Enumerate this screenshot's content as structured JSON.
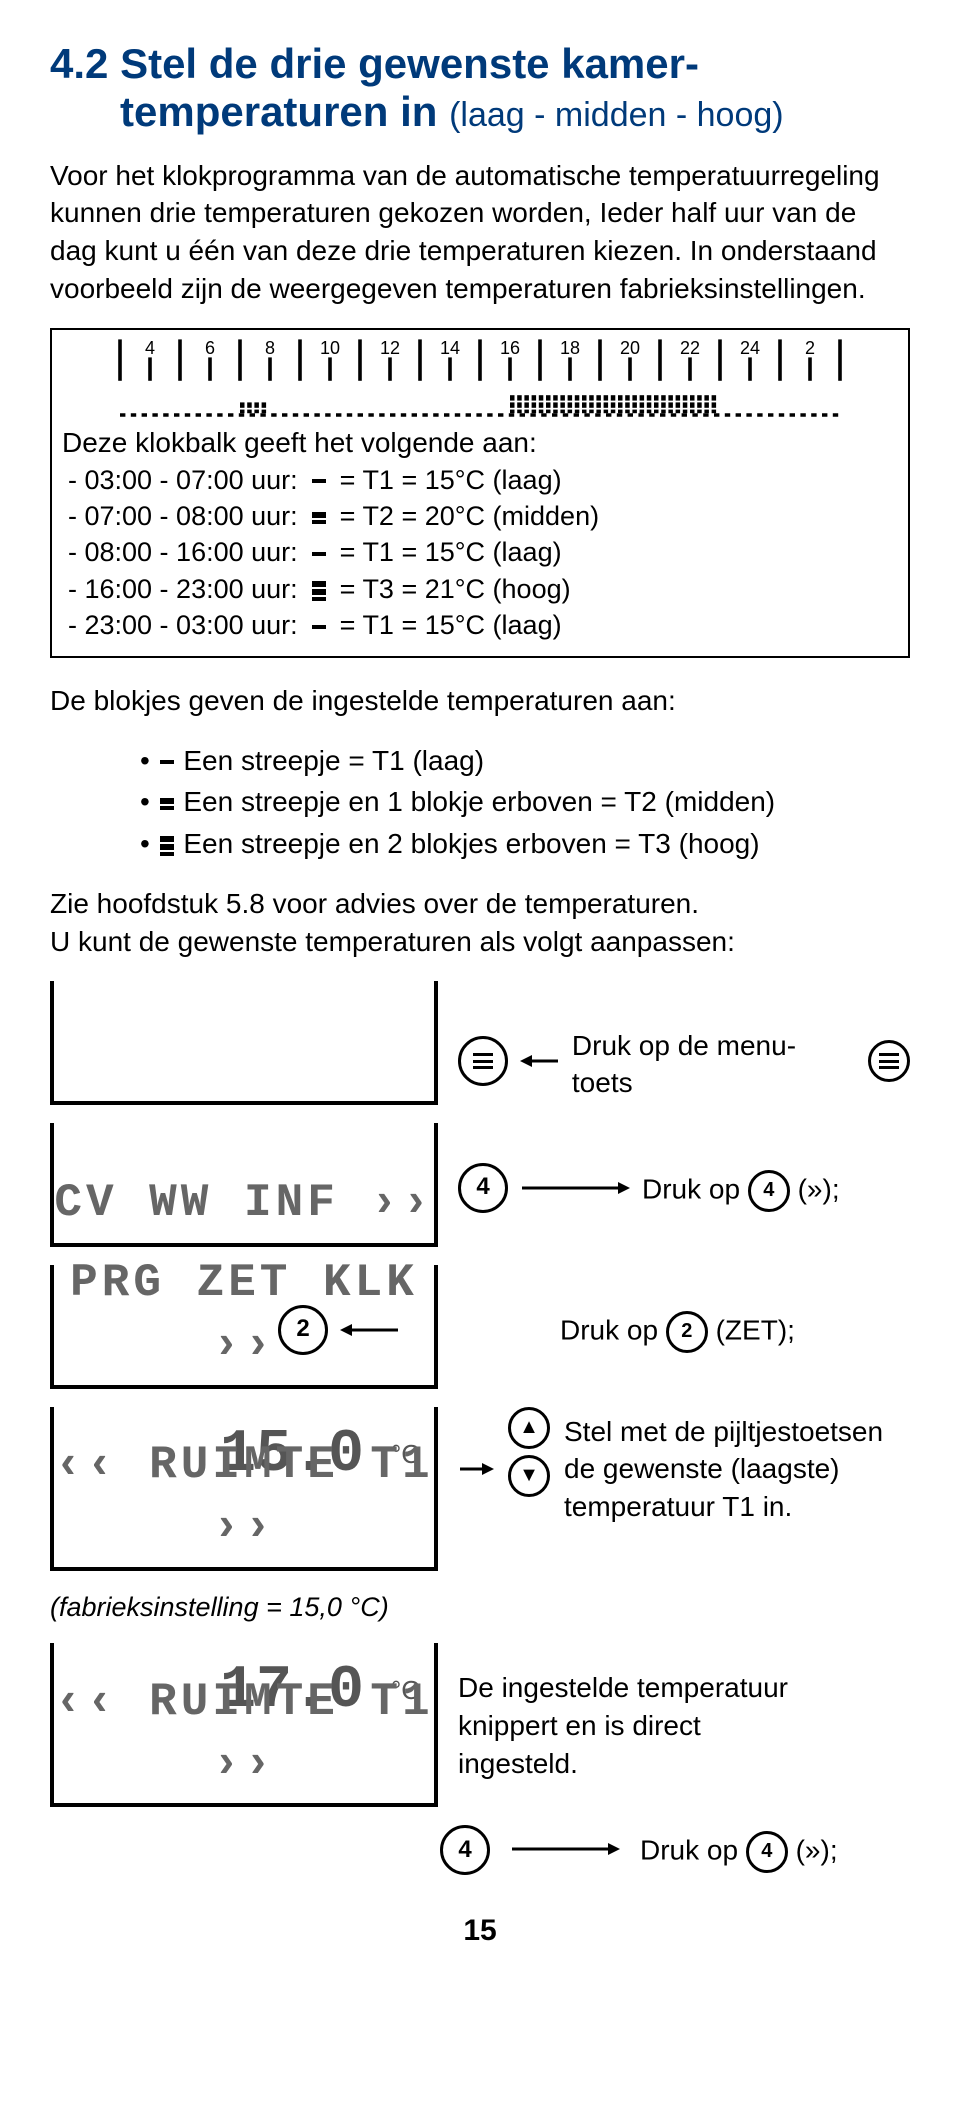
{
  "heading": {
    "number": "4.2",
    "title_line1": "Stel de drie gewenste kamer-",
    "title_line2": "temperaturen in",
    "sub": "(laag - midden - hoog)"
  },
  "intro": "Voor het klokprogramma van de automatische temperatuurregeling kunnen drie temperaturen gekozen worden, Ieder half uur van de dag kunt u één van deze drie temperaturen kiezen. In onderstaand voorbeeld zijn de weergegeven temperaturen fabrieksinstellingen.",
  "timeline": {
    "hours": [
      4,
      6,
      8,
      10,
      12,
      14,
      16,
      18,
      20,
      22,
      24,
      2
    ],
    "caption": "Deze klokbalk geeft het volgende aan:",
    "rows": [
      {
        "range": "- 03:00 - 07:00 uur:",
        "icon": "dash",
        "value": "= T1 = 15°C (laag)"
      },
      {
        "range": "- 07:00 - 08:00 uur:",
        "icon": "stack2",
        "value": "= T2 = 20°C (midden)"
      },
      {
        "range": "- 08:00 - 16:00 uur:",
        "icon": "dash",
        "value": "= T1 = 15°C (laag)"
      },
      {
        "range": "- 16:00 - 23:00 uur:",
        "icon": "stack3",
        "value": "= T3 = 21°C (hoog)"
      },
      {
        "range": "- 23:00 - 03:00 uur:",
        "icon": "dash",
        "value": "= T1 = 15°C (laag)"
      }
    ]
  },
  "legend": {
    "lead": "De blokjes geven de ingestelde temperaturen aan:",
    "items": [
      {
        "icon": "dash",
        "text": "Een streepje = T1 (laag)"
      },
      {
        "icon": "stack2",
        "text": "Een streepje en 1 blokje erboven = T2 (midden)"
      },
      {
        "icon": "stack3",
        "text": "Een streepje en 2 blokjes erboven = T3 (hoog)"
      }
    ]
  },
  "advice": "Zie hoofdstuk 5.8 voor advies over de temperaturen.\nU kunt de gewenste temperaturen als volgt aanpassen:",
  "steps": {
    "step1": {
      "display": "",
      "btn": "menu",
      "text": "Druk op  de menu-toets"
    },
    "step2": {
      "display": "CV  WW  INF  ››",
      "btn": "4",
      "text_pre": "Druk op",
      "text_post": "(»);"
    },
    "step3": {
      "display": "PRG  ZET  KLK  ››",
      "btn": "2",
      "text_pre": "Druk op",
      "text_post": "(ZET);"
    },
    "step4": {
      "big": "15.0",
      "unit": "°C",
      "display": "‹‹  RUIMTE  T1  ››",
      "text": "Stel met de pijltjestoetsen de gewenste (laagste) temperatuur T1 in."
    },
    "factory": "(fabrieksinstelling = 15,0 °C)",
    "step5": {
      "big": "17.0",
      "unit": "°C",
      "display": "‹‹  RUIMTE  T1  ››",
      "text": "De ingestelde temperatuur knippert en is direct ingesteld."
    },
    "step6": {
      "btn": "4",
      "text_pre": "Druk op",
      "text_post": "(»);"
    }
  },
  "pagenum": "15",
  "colors": {
    "heading": "#003a7a"
  }
}
